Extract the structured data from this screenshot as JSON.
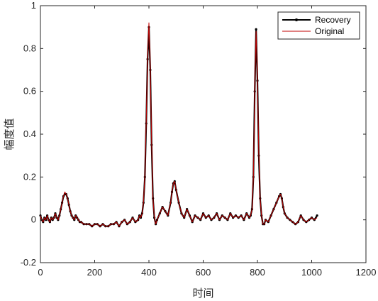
{
  "chart_data": {
    "type": "line",
    "title": "",
    "xlabel": "时间",
    "ylabel": "幅度值",
    "xlim": [
      0,
      1200
    ],
    "ylim": [
      -0.2,
      1.0
    ],
    "xticks": [
      0,
      200,
      400,
      600,
      800,
      1000,
      1200
    ],
    "yticks": [
      -0.2,
      0,
      0.2,
      0.4,
      0.6,
      0.8,
      1
    ],
    "xtick_labels": [
      "0",
      "200",
      "400",
      "600",
      "800",
      "1000",
      "1200"
    ],
    "ytick_labels": [
      "-0.2",
      "0",
      "0.2",
      "0.4",
      "0.6",
      "0.8",
      "1"
    ],
    "grid": false,
    "legend_position": "top-right",
    "series": [
      {
        "name": "Recovery",
        "color": "#000000",
        "marker": "dot",
        "x": [
          0,
          5,
          10,
          15,
          20,
          25,
          30,
          35,
          40,
          45,
          50,
          55,
          60,
          65,
          70,
          75,
          80,
          85,
          90,
          95,
          100,
          105,
          110,
          115,
          120,
          125,
          130,
          135,
          140,
          145,
          150,
          160,
          170,
          180,
          190,
          200,
          210,
          220,
          230,
          240,
          250,
          260,
          270,
          280,
          290,
          300,
          310,
          320,
          330,
          340,
          350,
          360,
          365,
          370,
          375,
          380,
          385,
          390,
          395,
          400,
          405,
          410,
          415,
          420,
          425,
          430,
          440,
          450,
          460,
          470,
          480,
          485,
          490,
          495,
          500,
          510,
          520,
          530,
          540,
          550,
          560,
          570,
          580,
          590,
          600,
          610,
          620,
          630,
          640,
          650,
          660,
          670,
          680,
          690,
          700,
          710,
          720,
          730,
          740,
          750,
          760,
          770,
          775,
          780,
          785,
          790,
          795,
          800,
          805,
          810,
          815,
          820,
          825,
          830,
          840,
          850,
          860,
          870,
          880,
          885,
          890,
          895,
          900,
          910,
          920,
          930,
          940,
          950,
          960,
          970,
          980,
          990,
          1000,
          1010,
          1020
        ],
        "y": [
          0.02,
          0.0,
          -0.01,
          0.01,
          0.0,
          0.02,
          0.0,
          -0.01,
          0.01,
          0.0,
          0.01,
          0.03,
          0.01,
          0.0,
          0.02,
          0.05,
          0.08,
          0.11,
          0.12,
          0.12,
          0.1,
          0.07,
          0.04,
          0.02,
          0.01,
          0.0,
          0.02,
          0.01,
          0.0,
          -0.01,
          -0.01,
          -0.02,
          -0.02,
          -0.02,
          -0.03,
          -0.02,
          -0.02,
          -0.03,
          -0.02,
          -0.03,
          -0.03,
          -0.02,
          -0.02,
          -0.01,
          -0.03,
          -0.01,
          0.0,
          -0.02,
          -0.01,
          0.01,
          -0.01,
          0.0,
          0.02,
          0.01,
          0.03,
          0.08,
          0.2,
          0.45,
          0.75,
          0.9,
          0.7,
          0.35,
          0.1,
          0.01,
          -0.02,
          0.0,
          0.03,
          0.06,
          0.04,
          0.02,
          0.08,
          0.13,
          0.17,
          0.18,
          0.14,
          0.08,
          0.03,
          0.01,
          0.05,
          0.02,
          -0.01,
          0.02,
          0.01,
          0.0,
          0.03,
          0.01,
          0.02,
          0.0,
          0.01,
          0.03,
          0.0,
          0.02,
          0.01,
          0.0,
          0.03,
          0.01,
          0.02,
          0.01,
          0.02,
          0.0,
          0.03,
          0.01,
          0.02,
          0.05,
          0.2,
          0.6,
          0.89,
          0.65,
          0.3,
          0.1,
          0.02,
          -0.02,
          -0.02,
          0.0,
          -0.01,
          0.02,
          0.05,
          0.08,
          0.11,
          0.12,
          0.1,
          0.06,
          0.03,
          0.01,
          0.0,
          -0.01,
          -0.02,
          -0.01,
          0.02,
          0.0,
          -0.01,
          0.0,
          0.01,
          0.0,
          0.02
        ]
      },
      {
        "name": "Original",
        "color": "#c00000",
        "marker": "none",
        "x": [
          0,
          5,
          10,
          15,
          20,
          25,
          30,
          35,
          40,
          45,
          50,
          55,
          60,
          65,
          70,
          75,
          80,
          85,
          90,
          95,
          100,
          105,
          110,
          115,
          120,
          125,
          130,
          135,
          140,
          145,
          150,
          160,
          170,
          180,
          190,
          200,
          210,
          220,
          230,
          240,
          250,
          260,
          270,
          280,
          290,
          300,
          310,
          320,
          330,
          340,
          350,
          360,
          365,
          370,
          375,
          380,
          385,
          390,
          395,
          400,
          405,
          410,
          415,
          420,
          425,
          430,
          440,
          450,
          460,
          470,
          480,
          485,
          490,
          495,
          500,
          510,
          520,
          530,
          540,
          550,
          560,
          570,
          580,
          590,
          600,
          610,
          620,
          630,
          640,
          650,
          660,
          670,
          680,
          690,
          700,
          710,
          720,
          730,
          740,
          750,
          760,
          770,
          775,
          780,
          785,
          790,
          795,
          800,
          805,
          810,
          815,
          820,
          825,
          830,
          840,
          850,
          860,
          870,
          880,
          885,
          890,
          895,
          900,
          910,
          920,
          930,
          940,
          950,
          960,
          970,
          980,
          990,
          1000,
          1010,
          1020
        ],
        "y": [
          0.02,
          0.0,
          -0.01,
          0.01,
          0.0,
          0.02,
          0.0,
          -0.01,
          0.01,
          0.0,
          0.01,
          0.03,
          0.01,
          0.0,
          0.02,
          0.05,
          0.08,
          0.11,
          0.13,
          0.12,
          0.1,
          0.07,
          0.04,
          0.02,
          0.01,
          0.0,
          0.02,
          0.01,
          0.0,
          -0.01,
          -0.01,
          -0.02,
          -0.02,
          -0.02,
          -0.03,
          -0.02,
          -0.02,
          -0.03,
          -0.02,
          -0.03,
          -0.03,
          -0.02,
          -0.02,
          -0.01,
          -0.03,
          -0.01,
          0.0,
          -0.02,
          -0.01,
          0.01,
          -0.01,
          0.0,
          0.02,
          0.01,
          0.03,
          0.08,
          0.21,
          0.46,
          0.76,
          0.92,
          0.71,
          0.36,
          0.1,
          0.01,
          -0.02,
          0.0,
          0.03,
          0.06,
          0.04,
          0.02,
          0.08,
          0.13,
          0.17,
          0.18,
          0.14,
          0.08,
          0.03,
          0.01,
          0.05,
          0.02,
          -0.01,
          0.02,
          0.01,
          0.0,
          0.03,
          0.01,
          0.02,
          0.0,
          0.01,
          0.03,
          0.0,
          0.02,
          0.01,
          0.0,
          0.03,
          0.01,
          0.02,
          0.01,
          0.02,
          0.0,
          0.03,
          0.01,
          0.02,
          0.05,
          0.2,
          0.61,
          0.88,
          0.66,
          0.31,
          0.1,
          0.02,
          -0.02,
          -0.02,
          0.0,
          -0.01,
          0.02,
          0.05,
          0.08,
          0.11,
          0.12,
          0.1,
          0.06,
          0.03,
          0.01,
          0.0,
          -0.01,
          -0.02,
          -0.01,
          0.02,
          0.0,
          -0.01,
          0.0,
          0.01,
          0.0,
          0.01
        ]
      }
    ]
  }
}
